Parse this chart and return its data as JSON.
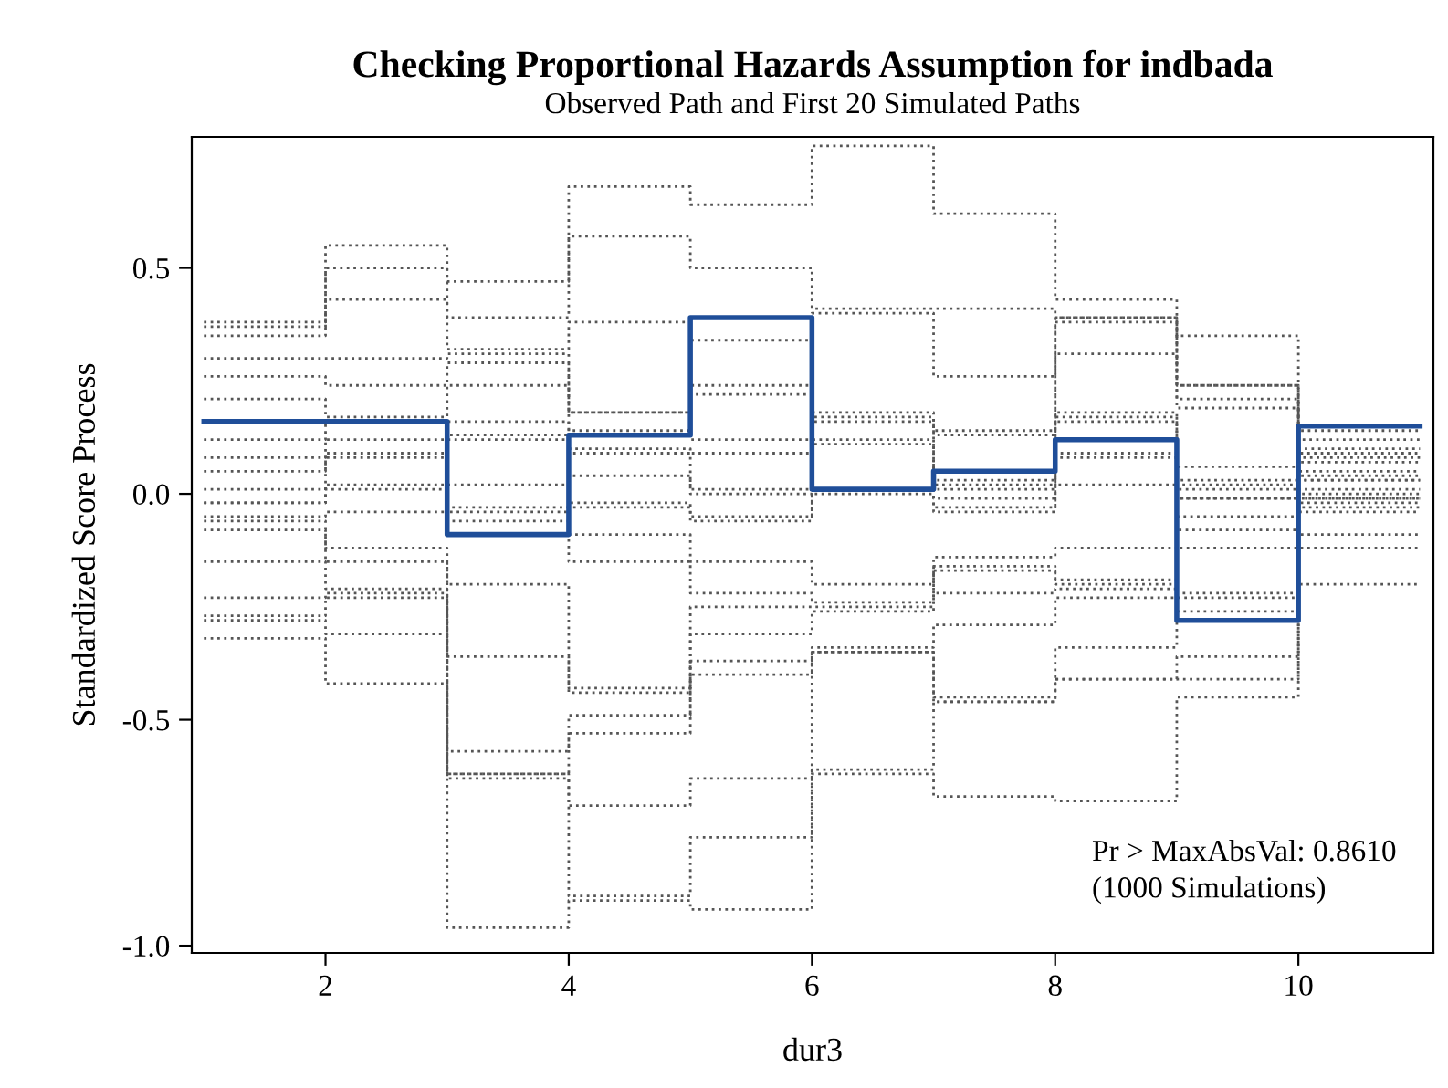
{
  "chart_data": {
    "type": "step",
    "title": "Checking Proportional Hazards Assumption for indbada",
    "subtitle": "Observed Path and First 20 Simulated Paths",
    "xlabel": "dur3",
    "ylabel": "Standardized Score Process",
    "x": [
      1,
      2,
      3,
      4,
      5,
      6,
      7,
      8,
      9,
      10,
      11
    ],
    "xlim": [
      0.9,
      11.11
    ],
    "xticks": [
      2,
      4,
      6,
      8,
      10
    ],
    "ylim": [
      -1.016,
      0.79
    ],
    "yticks": [
      {
        "value": -1.0,
        "label": "-1.0"
      },
      {
        "value": -0.5,
        "label": "-0.5"
      },
      {
        "value": 0.0,
        "label": "0.0"
      },
      {
        "value": 0.5,
        "label": "0.5"
      }
    ],
    "grid": false,
    "legend": false,
    "marker": "none",
    "annotations": [
      "Pr > MaxAbsVal: 0.8610",
      "(1000 Simulations)"
    ],
    "series": [
      {
        "color": "#555555",
        "line_style": "dotted",
        "values": [
          0.38,
          0.55,
          0.47,
          0.68,
          0.64,
          0.77,
          0.62,
          0.43,
          0.35,
          0.14,
          0.14
        ]
      },
      {
        "color": "#555555",
        "line_style": "dotted",
        "values": [
          0.37,
          0.5,
          0.39,
          0.57,
          0.5,
          0.41,
          0.41,
          0.39,
          0.24,
          0.12,
          0.12
        ]
      },
      {
        "color": "#555555",
        "line_style": "dotted",
        "values": [
          0.35,
          0.43,
          0.32,
          0.38,
          0.34,
          0.4,
          0.26,
          0.39,
          0.24,
          0.1,
          0.1
        ]
      },
      {
        "color": "#555555",
        "line_style": "dotted",
        "values": [
          0.3,
          0.3,
          0.31,
          0.18,
          0.24,
          0.18,
          0.14,
          0.38,
          0.21,
          0.09,
          0.09
        ]
      },
      {
        "color": "#555555",
        "line_style": "dotted",
        "values": [
          0.26,
          0.24,
          0.29,
          0.18,
          0.22,
          0.17,
          0.13,
          0.31,
          0.19,
          0.08,
          0.08
        ]
      },
      {
        "color": "#555555",
        "line_style": "dotted",
        "values": [
          0.21,
          0.17,
          0.24,
          0.14,
          0.12,
          0.16,
          0.03,
          0.18,
          0.06,
          0.07,
          0.07
        ]
      },
      {
        "color": "#555555",
        "line_style": "dotted",
        "values": [
          0.12,
          0.16,
          0.16,
          0.1,
          0.09,
          0.12,
          0.02,
          0.17,
          0.03,
          0.05,
          0.05
        ]
      },
      {
        "color": "#555555",
        "line_style": "dotted",
        "values": [
          0.08,
          0.12,
          0.13,
          0.09,
          0.01,
          0.11,
          0.01,
          0.16,
          0.02,
          0.04,
          0.04
        ]
      },
      {
        "color": "#555555",
        "line_style": "dotted",
        "values": [
          0.05,
          0.09,
          0.12,
          0.04,
          0.0,
          0.01,
          -0.01,
          0.09,
          0.01,
          0.03,
          0.03
        ]
      },
      {
        "color": "#555555",
        "line_style": "dotted",
        "values": [
          0.01,
          0.08,
          0.02,
          -0.02,
          -0.05,
          0.01,
          -0.03,
          0.08,
          -0.01,
          0.03,
          0.03
        ]
      },
      {
        "color": "#555555",
        "line_style": "dotted",
        "values": [
          -0.02,
          0.02,
          -0.03,
          -0.03,
          -0.06,
          0.0,
          -0.04,
          0.02,
          -0.01,
          0.01,
          0.01
        ]
      },
      {
        "color": "#555555",
        "line_style": "dotted",
        "values": [
          -0.02,
          0.01,
          -0.04,
          -0.09,
          -0.15,
          -0.2,
          -0.14,
          -0.12,
          -0.05,
          0.0,
          0.0
        ]
      },
      {
        "color": "#555555",
        "line_style": "dotted",
        "values": [
          -0.05,
          -0.04,
          -0.06,
          -0.15,
          -0.22,
          -0.24,
          -0.16,
          -0.19,
          -0.08,
          -0.01,
          -0.01
        ]
      },
      {
        "color": "#555555",
        "line_style": "dotted",
        "values": [
          -0.06,
          -0.12,
          -0.2,
          -0.43,
          -0.25,
          -0.25,
          -0.17,
          -0.2,
          -0.12,
          -0.01,
          -0.01
        ]
      },
      {
        "color": "#555555",
        "line_style": "dotted",
        "values": [
          -0.08,
          -0.15,
          -0.36,
          -0.44,
          -0.31,
          -0.26,
          -0.22,
          -0.21,
          -0.22,
          -0.02,
          -0.02
        ]
      },
      {
        "color": "#555555",
        "line_style": "dotted",
        "values": [
          -0.15,
          -0.21,
          -0.57,
          -0.49,
          -0.37,
          -0.34,
          -0.29,
          -0.23,
          -0.23,
          -0.03,
          -0.03
        ]
      },
      {
        "color": "#555555",
        "line_style": "dotted",
        "values": [
          -0.23,
          -0.22,
          -0.62,
          -0.53,
          -0.4,
          -0.35,
          -0.45,
          -0.34,
          -0.26,
          -0.04,
          -0.04
        ]
      },
      {
        "color": "#555555",
        "line_style": "dotted",
        "values": [
          -0.27,
          -0.23,
          -0.62,
          -0.69,
          -0.63,
          -0.35,
          -0.46,
          -0.41,
          -0.36,
          -0.09,
          -0.09
        ]
      },
      {
        "color": "#555555",
        "line_style": "dotted",
        "values": [
          -0.28,
          -0.31,
          -0.63,
          -0.89,
          -0.76,
          -0.61,
          -0.46,
          -0.41,
          -0.41,
          -0.12,
          -0.12
        ]
      },
      {
        "color": "#555555",
        "line_style": "dotted",
        "values": [
          -0.32,
          -0.42,
          -0.96,
          -0.9,
          -0.92,
          -0.62,
          -0.67,
          -0.68,
          -0.45,
          -0.2,
          -0.2
        ]
      },
      {
        "color": "#1f4e99",
        "line_style": "solid",
        "values": [
          0.16,
          0.16,
          -0.09,
          0.13,
          0.39,
          0.01,
          0.05,
          0.12,
          -0.28,
          0.15,
          0.15
        ]
      }
    ]
  }
}
